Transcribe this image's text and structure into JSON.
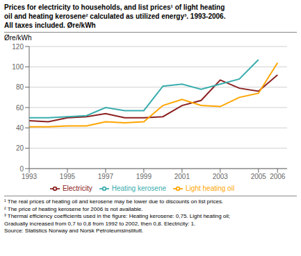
{
  "chart_data": {
    "type": "line",
    "title": "Prices for electricity to households, and list prices¹ of light heating\noil and heating kerosene² calculated as utilized energy³. 1993-2006.\nAll taxes included. Øre/kWh",
    "ylabel": "Øre/kWh",
    "x": [
      1993,
      1994,
      1995,
      1996,
      1997,
      1998,
      1999,
      2000,
      2001,
      2002,
      2003,
      2004,
      2005,
      2006
    ],
    "series": [
      {
        "name": "Electricity",
        "color": "#8B2020",
        "values": [
          47,
          46,
          50,
          51,
          54,
          50,
          50,
          51,
          62,
          67,
          87,
          79,
          76,
          92
        ]
      },
      {
        "name": "Heating kerosene",
        "color": "#3AADAD",
        "values": [
          50,
          50,
          51,
          52,
          60,
          57,
          57,
          81,
          83,
          78,
          83,
          88,
          107,
          null
        ]
      },
      {
        "name": "Light heating oil",
        "color": "#FFA500",
        "values": [
          41,
          41,
          42,
          42,
          46,
          45,
          46,
          62,
          68,
          62,
          61,
          70,
          74,
          104
        ]
      }
    ],
    "xlim": [
      1993,
      2006.5
    ],
    "xticks": [
      1993,
      1995,
      1997,
      1999,
      2001,
      2003,
      2005,
      2006
    ],
    "ylim": [
      0,
      120
    ],
    "yticks": [
      0,
      20,
      40,
      60,
      80,
      100,
      120
    ],
    "grid": true,
    "legend": "bottom",
    "annotations": [
      "¹ The real prices of heating oil and kerosene may be lower due to discounts on list prices.",
      "² The price of heating kerosene for 2006 is not available.",
      "³ Thermal efficiency coefficients used in the figure: Heating kerosene: 0,75. Light heating oil;",
      "Gradually increased from 0,7 to 0,8 from 1992 to 2002, then 0,8. Electricity: 1.",
      "Source: Statistics Norway and Norsk Petroleumsinstitutt."
    ]
  }
}
